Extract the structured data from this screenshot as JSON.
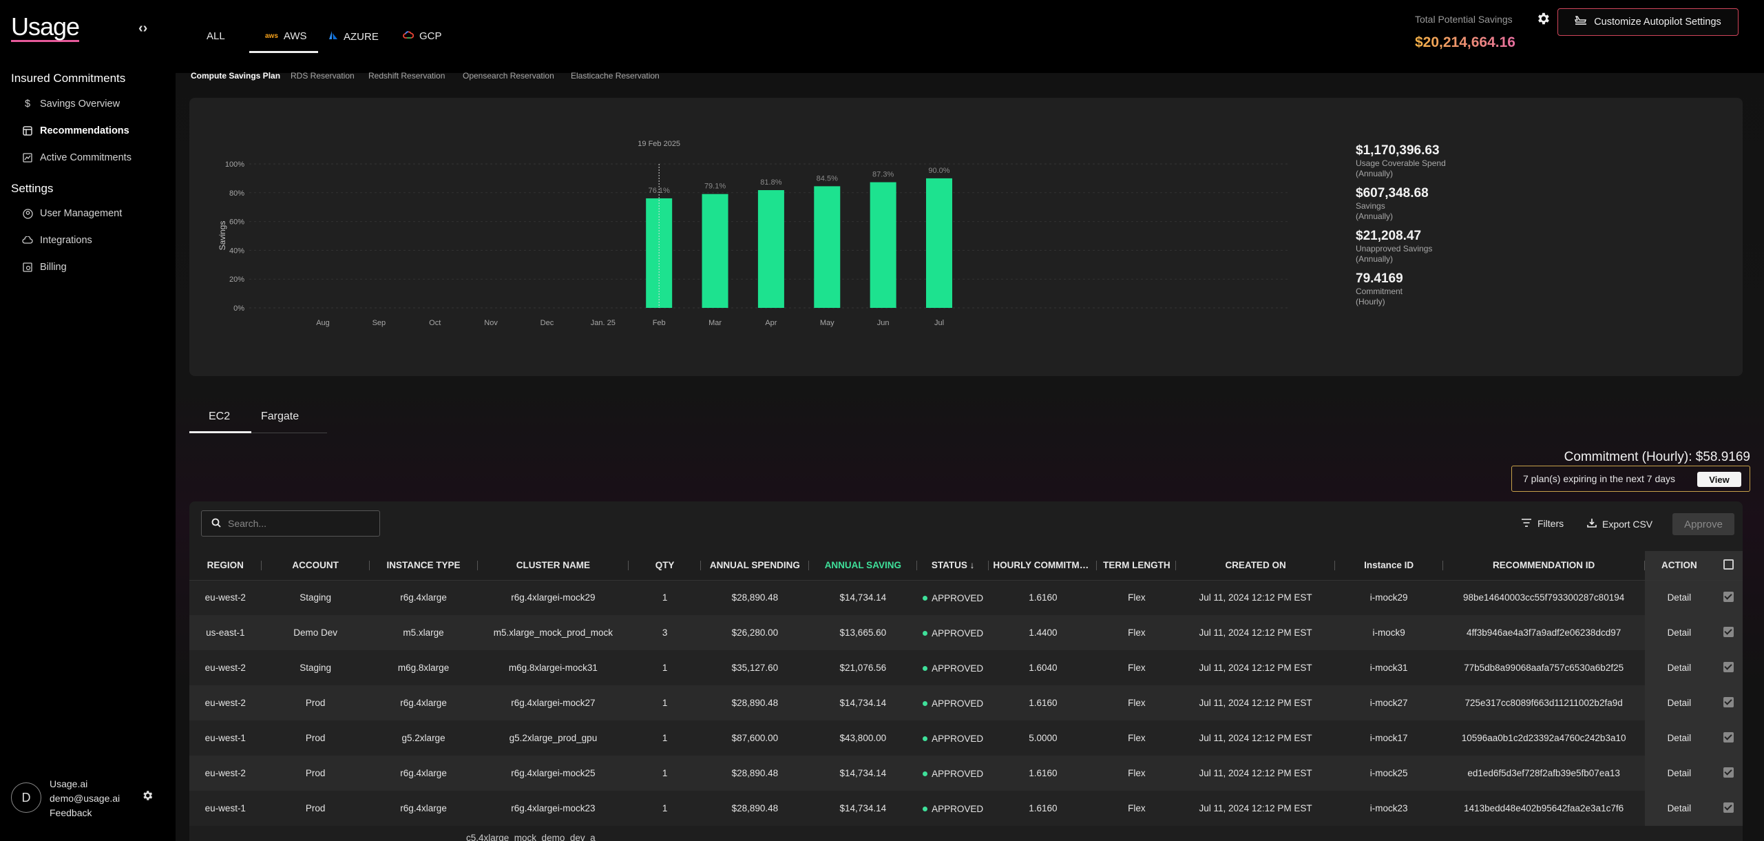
{
  "sidebar": {
    "logo": "Usage",
    "sections": [
      {
        "title": "Insured Commitments",
        "items": [
          {
            "label": "Savings Overview",
            "icon": "dollar-icon",
            "active": false
          },
          {
            "label": "Recommendations",
            "icon": "recommendations-icon",
            "active": true
          },
          {
            "label": "Active Commitments",
            "icon": "chart-icon",
            "active": false
          }
        ]
      },
      {
        "title": "Settings",
        "items": [
          {
            "label": "User Management",
            "icon": "users-icon",
            "active": false
          },
          {
            "label": "Integrations",
            "icon": "cloud-icon",
            "active": false
          },
          {
            "label": "Billing",
            "icon": "billing-icon",
            "active": false
          }
        ]
      }
    ],
    "user": {
      "initial": "D",
      "org": "Usage.ai",
      "email": "demo@usage.ai",
      "feedback": "Feedback"
    }
  },
  "header": {
    "cloud_tabs": [
      "ALL",
      "AWS",
      "AZURE",
      "GCP"
    ],
    "active_cloud": "AWS",
    "savings_label": "Total Potential Savings",
    "savings_value": "$20,214,664.16",
    "autopilot_button": "Customize Autopilot Settings"
  },
  "subtabs": [
    "Compute Savings Plan",
    "RDS Reservation",
    "Redshift Reservation",
    "Opensearch Reservation",
    "Elasticache Reservation"
  ],
  "chart_data": {
    "type": "bar",
    "categories": [
      "Aug",
      "Sep",
      "Oct",
      "Nov",
      "Dec",
      "Jan. 25",
      "Feb",
      "Mar",
      "Apr",
      "May",
      "Jun",
      "Jul"
    ],
    "values": [
      null,
      null,
      null,
      null,
      null,
      null,
      76.1,
      79.1,
      81.8,
      84.5,
      87.3,
      90.0
    ],
    "value_labels": [
      "",
      "",
      "",
      "",
      "",
      "",
      "76.1%",
      "79.1%",
      "81.8%",
      "84.5%",
      "87.3%",
      "90.0%"
    ],
    "ylabel": "Savings",
    "y_ticks": [
      "0%",
      "20%",
      "40%",
      "60%",
      "80%",
      "100%"
    ],
    "ylim": [
      0,
      100
    ],
    "marker_label": "19 Feb 2025",
    "marker_category": "Feb",
    "bar_color": "#1de28f"
  },
  "stats": [
    {
      "value": "$1,170,396.63",
      "label1": "Usage Coverable Spend",
      "label2": "(Annually)"
    },
    {
      "value": "$607,348.68",
      "label1": "Savings",
      "label2": "(Annually)"
    },
    {
      "value": "$21,208.47",
      "label1": "Unapproved Savings",
      "label2": "(Annually)"
    },
    {
      "value": "79.4169",
      "label1": "Commitment",
      "label2": "(Hourly)"
    }
  ],
  "service_tabs": [
    "EC2",
    "Fargate"
  ],
  "commitment_hourly": "Commitment (Hourly):  $58.9169",
  "expiring": {
    "text": "7 plan(s) expiring in the next 7 days",
    "button": "View"
  },
  "table": {
    "search_placeholder": "Search...",
    "filters": "Filters",
    "export": "Export CSV",
    "approve": "Approve",
    "columns": [
      "REGION",
      "ACCOUNT",
      "INSTANCE TYPE",
      "CLUSTER NAME",
      "QTY",
      "ANNUAL SPENDING",
      "ANNUAL SAVING",
      "STATUS",
      "HOURLY COMMITMENT",
      "TERM LENGTH",
      "CREATED ON",
      "Instance ID",
      "RECOMMENDATION ID",
      "ACTION"
    ],
    "rows": [
      {
        "region": "eu-west-2",
        "account": "Staging",
        "instance_type": "r6g.4xlarge",
        "cluster": "r6g.4xlargei-mock29",
        "qty": "1",
        "spending": "$28,890.48",
        "saving": "$14,734.14",
        "status": "APPROVED",
        "hourly": "1.6160",
        "term": "Flex",
        "created": "Jul 11, 2024 12:12 PM EST",
        "instance_id": "i-mock29",
        "rec_id": "98be14640003cc55f793300287c80194",
        "action": "Detail"
      },
      {
        "region": "us-east-1",
        "account": "Demo Dev",
        "instance_type": "m5.xlarge",
        "cluster": "m5.xlarge_mock_prod_mock",
        "qty": "3",
        "spending": "$26,280.00",
        "saving": "$13,665.60",
        "status": "APPROVED",
        "hourly": "1.4400",
        "term": "Flex",
        "created": "Jul 11, 2024 12:12 PM EST",
        "instance_id": "i-mock9",
        "rec_id": "4ff3b946ae4a3f7a9adf2e06238dcd97",
        "action": "Detail"
      },
      {
        "region": "eu-west-2",
        "account": "Staging",
        "instance_type": "m6g.8xlarge",
        "cluster": "m6g.8xlargei-mock31",
        "qty": "1",
        "spending": "$35,127.60",
        "saving": "$21,076.56",
        "status": "APPROVED",
        "hourly": "1.6040",
        "term": "Flex",
        "created": "Jul 11, 2024 12:12 PM EST",
        "instance_id": "i-mock31",
        "rec_id": "77b5db8a99068aafa757c6530a6b2f25",
        "action": "Detail"
      },
      {
        "region": "eu-west-2",
        "account": "Prod",
        "instance_type": "r6g.4xlarge",
        "cluster": "r6g.4xlargei-mock27",
        "qty": "1",
        "spending": "$28,890.48",
        "saving": "$14,734.14",
        "status": "APPROVED",
        "hourly": "1.6160",
        "term": "Flex",
        "created": "Jul 11, 2024 12:12 PM EST",
        "instance_id": "i-mock27",
        "rec_id": "725e317cc8089f663d11211002b2fa9d",
        "action": "Detail"
      },
      {
        "region": "eu-west-1",
        "account": "Prod",
        "instance_type": "g5.2xlarge",
        "cluster": "g5.2xlarge_prod_gpu",
        "qty": "1",
        "spending": "$87,600.00",
        "saving": "$43,800.00",
        "status": "APPROVED",
        "hourly": "5.0000",
        "term": "Flex",
        "created": "Jul 11, 2024 12:12 PM EST",
        "instance_id": "i-mock17",
        "rec_id": "10596aa0b1c2d23392a4760c242b3a10",
        "action": "Detail"
      },
      {
        "region": "eu-west-2",
        "account": "Prod",
        "instance_type": "r6g.4xlarge",
        "cluster": "r6g.4xlargei-mock25",
        "qty": "1",
        "spending": "$28,890.48",
        "saving": "$14,734.14",
        "status": "APPROVED",
        "hourly": "1.6160",
        "term": "Flex",
        "created": "Jul 11, 2024 12:12 PM EST",
        "instance_id": "i-mock25",
        "rec_id": "ed1ed6f5d3ef728f2afb39e5fb07ea13",
        "action": "Detail"
      },
      {
        "region": "eu-west-1",
        "account": "Prod",
        "instance_type": "r6g.4xlarge",
        "cluster": "r6g.4xlargei-mock23",
        "qty": "1",
        "spending": "$28,890.48",
        "saving": "$14,734.14",
        "status": "APPROVED",
        "hourly": "1.6160",
        "term": "Flex",
        "created": "Jul 11, 2024 12:12 PM EST",
        "instance_id": "i-mock23",
        "rec_id": "1413bedd48e402b95642faa2e3a1c7f6",
        "action": "Detail"
      }
    ],
    "partial_row_cluster": "c5.4xlarge_mock_demo_dev_a"
  }
}
